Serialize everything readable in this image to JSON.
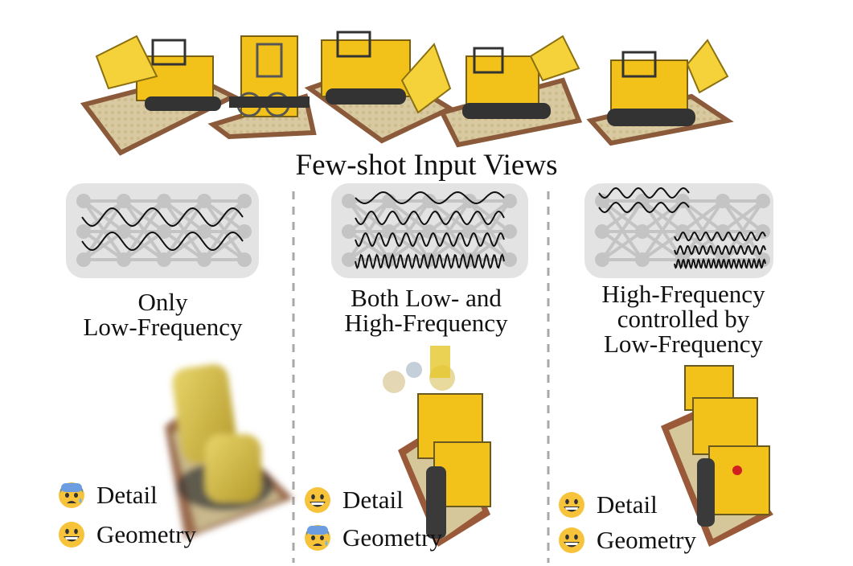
{
  "header": {
    "title": "Few-shot Input Views"
  },
  "columns": [
    {
      "caption_lines": [
        "Only",
        "Low-Frequency"
      ],
      "legend": [
        {
          "face": "fearful-face",
          "label": "Detail"
        },
        {
          "face": "grinning-face",
          "label": "Geometry"
        }
      ]
    },
    {
      "caption_lines": [
        "Both Low- and",
        "High-Frequency"
      ],
      "legend": [
        {
          "face": "grinning-face",
          "label": "Detail"
        },
        {
          "face": "fearful-face",
          "label": "Geometry"
        }
      ]
    },
    {
      "caption_lines": [
        "High-Frequency",
        "controlled by",
        "Low-Frequency"
      ],
      "legend": [
        {
          "face": "grinning-face",
          "label": "Detail"
        },
        {
          "face": "grinning-face",
          "label": "Geometry"
        }
      ]
    }
  ],
  "colors": {
    "panel": "#e3e3e3",
    "node": "#c4c4c4",
    "wave": "#111111",
    "divider": "#a8a8a8",
    "lego": "#f2c21b"
  }
}
